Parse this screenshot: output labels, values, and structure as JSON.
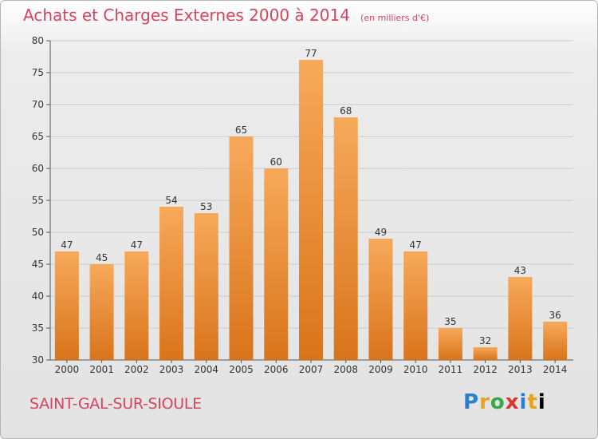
{
  "header": {
    "title": "Achats et Charges Externes 2000 à 2014",
    "subtitle": "(en milliers d'€)"
  },
  "footer": {
    "place": "SAINT-GAL-SUR-SIOULE",
    "logo_letters": [
      "P",
      "r",
      "o",
      "x",
      "i",
      "t",
      "i"
    ]
  },
  "colors": {
    "title": "#d6455e",
    "bar_light": "#f7a95a",
    "bar_dark": "#d9741b",
    "grid": "#cccccc"
  },
  "chart_data": {
    "type": "bar",
    "title": "Achats et Charges Externes 2000 à 2014",
    "subtitle": "(en milliers d'€)",
    "xlabel": "",
    "ylabel": "",
    "categories": [
      "2000",
      "2001",
      "2002",
      "2003",
      "2004",
      "2005",
      "2006",
      "2007",
      "2008",
      "2009",
      "2010",
      "2011",
      "2012",
      "2013",
      "2014"
    ],
    "values": [
      47,
      45,
      47,
      54,
      53,
      65,
      60,
      77,
      68,
      49,
      47,
      35,
      32,
      43,
      36
    ],
    "ylim": [
      30,
      80
    ],
    "yticks": [
      30,
      35,
      40,
      45,
      50,
      55,
      60,
      65,
      70,
      75,
      80
    ],
    "grid": true,
    "data_labels": true
  }
}
